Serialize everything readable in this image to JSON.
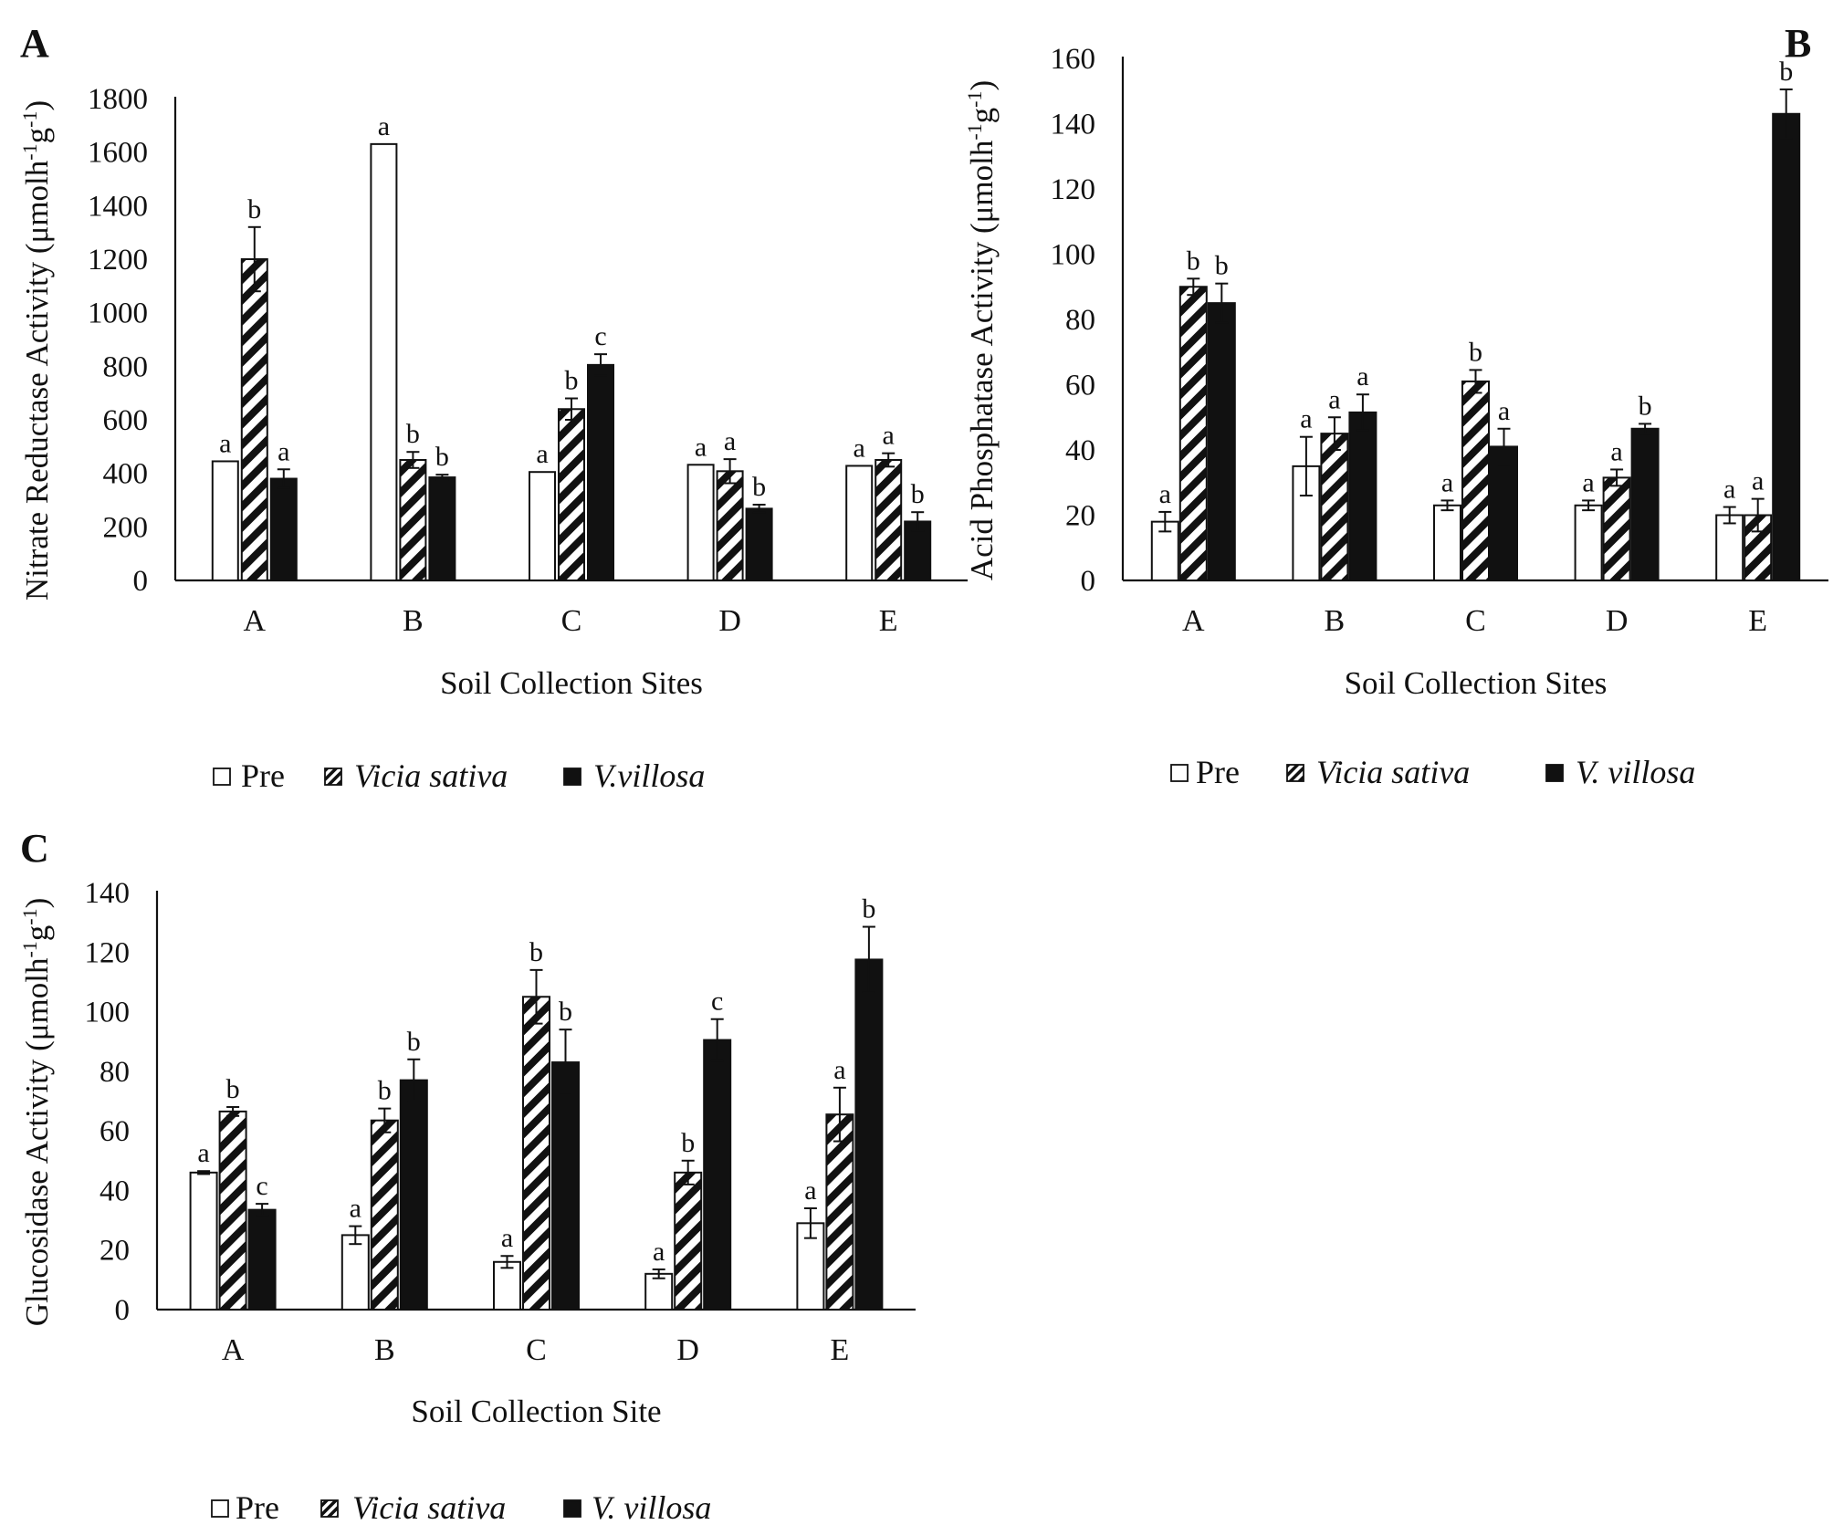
{
  "figure": {
    "background": "#ffffff",
    "ink": "#111111"
  },
  "legend_labels": [
    "Pre",
    "Vicia sativa",
    "V.villosa",
    "V. villosa"
  ],
  "chart_data": [
    {
      "panel": "A",
      "type": "bar",
      "ylabel_text": "Nitrate Reductase Activity (μmolh",
      "ylabel_sup": "-1",
      "ylabel_mid": "g",
      "ylabel_end": ")",
      "xlabel": "Soil Collection Sites",
      "ylim": [
        0,
        1800
      ],
      "yticks": [
        0,
        200,
        400,
        600,
        800,
        1000,
        1200,
        1400,
        1600,
        1800
      ],
      "categories": [
        "A",
        "B",
        "C",
        "D",
        "E"
      ],
      "series": [
        {
          "name": "Pre",
          "pattern": "open",
          "values": [
            445,
            1630,
            405,
            432,
            428
          ],
          "errors": [
            0,
            0,
            0,
            0,
            0
          ],
          "letters": [
            "a",
            "a",
            "a",
            "a",
            "a"
          ]
        },
        {
          "name": "Vicia sativa",
          "pattern": "hatched",
          "values": [
            1200,
            450,
            640,
            408,
            450
          ],
          "errors": [
            120,
            30,
            40,
            45,
            25
          ],
          "letters": [
            "b",
            "b",
            "b",
            "a",
            "a"
          ]
        },
        {
          "name": "V.villosa",
          "pattern": "solid",
          "values": [
            380,
            385,
            805,
            268,
            220
          ],
          "errors": [
            35,
            10,
            40,
            15,
            35
          ],
          "letters": [
            "a",
            "b",
            "c",
            "b",
            "b"
          ]
        }
      ]
    },
    {
      "panel": "B",
      "type": "bar",
      "ylabel_text": "Acid Phosphatase Activity (μmolh",
      "ylabel_sup": "-1",
      "ylabel_mid": "g",
      "ylabel_end": ")",
      "xlabel": "Soil Collection Sites",
      "ylim": [
        0,
        160
      ],
      "yticks": [
        0,
        20,
        40,
        60,
        80,
        100,
        120,
        140,
        160
      ],
      "categories": [
        "A",
        "B",
        "C",
        "D",
        "E"
      ],
      "series": [
        {
          "name": "Pre",
          "pattern": "open",
          "values": [
            18,
            35,
            23,
            23,
            20
          ],
          "errors": [
            3,
            9,
            1.5,
            1.5,
            2.5
          ],
          "letters": [
            "a",
            "a",
            "a",
            "a",
            "a"
          ]
        },
        {
          "name": "Vicia sativa",
          "pattern": "hatched",
          "values": [
            90,
            45,
            61,
            31.5,
            20
          ],
          "errors": [
            2.5,
            5,
            3.5,
            2.5,
            5
          ],
          "letters": [
            "b",
            "a",
            "b",
            "a",
            "a"
          ]
        },
        {
          "name": "V. villosa",
          "pattern": "solid",
          "values": [
            85,
            51.5,
            41,
            46.5,
            143
          ],
          "errors": [
            6,
            5.5,
            5.5,
            1.5,
            7.5
          ],
          "letters": [
            "b",
            "a",
            "a",
            "b",
            "b"
          ]
        }
      ]
    },
    {
      "panel": "C",
      "type": "bar",
      "ylabel_text": "Glucosidase Activity (μmolh",
      "ylabel_sup": "-1",
      "ylabel_mid": "g",
      "ylabel_end": ")",
      "xlabel": "Soil Collection Site",
      "ylim": [
        0,
        140
      ],
      "yticks": [
        0,
        20,
        40,
        60,
        80,
        100,
        120,
        140
      ],
      "categories": [
        "A",
        "B",
        "C",
        "D",
        "E"
      ],
      "series": [
        {
          "name": "Pre",
          "pattern": "open",
          "values": [
            46,
            25,
            16,
            12,
            29
          ],
          "errors": [
            0.5,
            3,
            2,
            1.5,
            5
          ],
          "letters": [
            "a",
            "a",
            "a",
            "a",
            "a"
          ]
        },
        {
          "name": "Vicia sativa",
          "pattern": "hatched",
          "values": [
            66.5,
            63.5,
            105,
            46,
            65.5
          ],
          "errors": [
            1.5,
            4,
            9,
            4,
            9
          ],
          "letters": [
            "b",
            "b",
            "b",
            "b",
            "a"
          ]
        },
        {
          "name": "V. villosa",
          "pattern": "solid",
          "values": [
            33.5,
            77,
            83,
            90.5,
            117.5
          ],
          "errors": [
            2,
            7,
            11,
            7,
            11
          ],
          "letters": [
            "c",
            "b",
            "b",
            "c",
            "b"
          ]
        }
      ]
    }
  ]
}
